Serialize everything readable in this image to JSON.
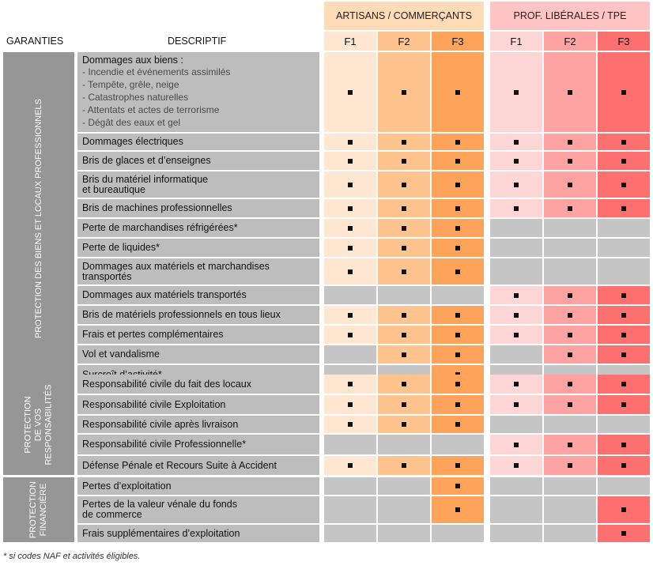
{
  "header": {
    "garanties_label": "GARANTIES",
    "descriptif_label": "DESCRIPTIF",
    "group_a": "ARTISANS / COMMERÇANTS",
    "group_b": "PROF. LIBÉRALES / TPE",
    "formulas": [
      "F1",
      "F2",
      "F3",
      "F1",
      "F2",
      "F3"
    ]
  },
  "colors": {
    "grey_cell": "#c5c5c5",
    "group_a_header": "#ffdcb8",
    "group_b_header": "#ffc4c4",
    "group_a_cols": [
      "#ffe7d2",
      "#ffc48e",
      "#fea45a"
    ],
    "group_b_cols": [
      "#ffd6d6",
      "#ffa2a2",
      "#fc7070"
    ]
  },
  "sections": [
    {
      "label_lines": [
        "PROTECTION DES BIENS ET LOCAUX PROFESSIONNELS"
      ],
      "rows": [
        {
          "title_lines": [
            "Dommages aux biens :"
          ],
          "sub_lines": [
            "- Incendie et événements assimilés",
            "- Tempête, grêle, neige",
            "- Catastrophes naturelles",
            "- Attentats et actes de terrorisme",
            "- Dégât des eaux et gel"
          ],
          "cov": [
            1,
            1,
            1,
            1,
            1,
            1
          ]
        },
        {
          "title_lines": [
            "Dommages électriques"
          ],
          "cov": [
            1,
            1,
            1,
            1,
            1,
            1
          ]
        },
        {
          "title_lines": [
            "Bris de glaces et d’enseignes"
          ],
          "cov": [
            1,
            1,
            1,
            1,
            1,
            1
          ]
        },
        {
          "title_lines": [
            "Bris du matériel informatique",
            "et bureautique"
          ],
          "cov": [
            1,
            1,
            1,
            1,
            1,
            1
          ]
        },
        {
          "title_lines": [
            "Bris de machines professionnelles"
          ],
          "cov": [
            1,
            1,
            1,
            1,
            1,
            1
          ]
        },
        {
          "title_lines": [
            "Perte de marchandises réfrigérées*"
          ],
          "cov": [
            1,
            1,
            1,
            0,
            0,
            0
          ]
        },
        {
          "title_lines": [
            "Perte de liquides*"
          ],
          "cov": [
            1,
            1,
            1,
            0,
            0,
            0
          ]
        },
        {
          "title_lines": [
            "Dommages aux matériels et marchandises",
            "transportés"
          ],
          "cov": [
            1,
            1,
            1,
            0,
            0,
            0
          ]
        },
        {
          "title_lines": [
            "Dommages aux matériels transportés"
          ],
          "cov": [
            0,
            0,
            0,
            1,
            1,
            1
          ]
        },
        {
          "title_lines": [
            "Bris de matériels professionnels en tous lieux"
          ],
          "cov": [
            1,
            1,
            1,
            1,
            1,
            1
          ]
        },
        {
          "title_lines": [
            "Frais et pertes complémentaires"
          ],
          "cov": [
            1,
            1,
            1,
            1,
            1,
            1
          ]
        },
        {
          "title_lines": [
            "Vol et vandalisme"
          ],
          "cov": [
            0,
            1,
            1,
            0,
            1,
            1
          ]
        },
        {
          "title_lines": [
            "Surcroît d’activité*"
          ],
          "cov": [
            0,
            0,
            1,
            0,
            0,
            0
          ]
        }
      ]
    },
    {
      "label_lines": [
        "PROTECTION",
        "DE VOS",
        "RESPONSABILITÉS"
      ],
      "rows": [
        {
          "title_lines": [
            "Responsabilité civile du fait des locaux"
          ],
          "cov": [
            1,
            1,
            1,
            1,
            1,
            1
          ]
        },
        {
          "title_lines": [
            "Responsabilité civile Exploitation"
          ],
          "cov": [
            1,
            1,
            1,
            1,
            1,
            1
          ]
        },
        {
          "title_lines": [
            "Responsabilité civile après livraison"
          ],
          "cov": [
            1,
            1,
            1,
            0,
            0,
            0
          ]
        },
        {
          "title_lines": [
            "Responsabilité civile Professionnelle*"
          ],
          "cov": [
            0,
            0,
            0,
            1,
            1,
            1
          ]
        },
        {
          "title_lines": [
            "Défense Pénale et Recours Suite à Accident"
          ],
          "cov": [
            1,
            1,
            1,
            1,
            1,
            1
          ]
        }
      ]
    },
    {
      "label_lines": [
        "PROTECTION",
        "FINANCIÈRE"
      ],
      "rows": [
        {
          "title_lines": [
            "Pertes d’exploitation"
          ],
          "cov": [
            0,
            0,
            1,
            0,
            0,
            0
          ]
        },
        {
          "title_lines": [
            "Pertes de la valeur vénale du fonds",
            "de commerce"
          ],
          "cov": [
            0,
            0,
            1,
            0,
            0,
            1
          ]
        },
        {
          "title_lines": [
            "Frais supplémentaires d’exploitation"
          ],
          "cov": [
            0,
            0,
            0,
            0,
            0,
            1
          ]
        }
      ]
    }
  ],
  "footnote": "* si codes NAF et activités éligibles."
}
